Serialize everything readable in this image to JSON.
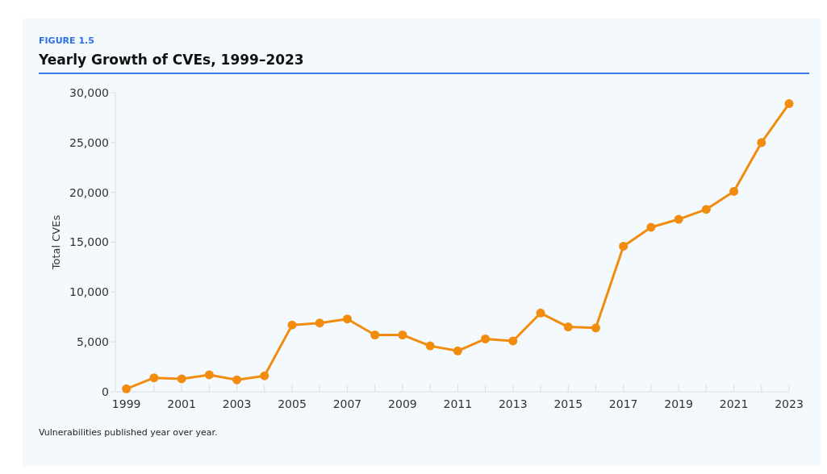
{
  "chart_data": {
    "type": "line",
    "title": "Yearly Growth of CVEs, 1999–2023",
    "ylabel": "Total CVEs",
    "annotations": [
      "FIGURE 1.5",
      "Vulnerabilities published year over year."
    ],
    "x": [
      1999,
      2000,
      2001,
      2002,
      2003,
      2004,
      2005,
      2006,
      2007,
      2008,
      2009,
      2010,
      2011,
      2012,
      2013,
      2014,
      2015,
      2016,
      2017,
      2018,
      2019,
      2020,
      2021,
      2022,
      2023
    ],
    "series": [
      {
        "color": "#f28c0f",
        "values": [
          300,
          1400,
          1300,
          1700,
          1200,
          1600,
          6700,
          6900,
          7300,
          5700,
          5700,
          4600,
          4100,
          5300,
          5100,
          7900,
          6500,
          6400,
          14600,
          16500,
          17300,
          18300,
          20100,
          25000,
          28900
        ]
      }
    ],
    "xlim": [
      1998.6,
      2023
    ],
    "xticks": [
      1999,
      {
        "value": 2000,
        "label": null
      },
      2001,
      {
        "value": 2002,
        "label": null
      },
      2003,
      {
        "value": 2004,
        "label": null
      },
      2005,
      {
        "value": 2006,
        "label": null
      },
      2007,
      {
        "value": 2008,
        "label": null
      },
      2009,
      {
        "value": 2010,
        "label": null
      },
      2011,
      {
        "value": 2012,
        "label": null
      },
      2013,
      {
        "value": 2014,
        "label": null
      },
      2015,
      {
        "value": 2016,
        "label": null
      },
      2017,
      {
        "value": 2018,
        "label": null
      },
      2019,
      {
        "value": 2020,
        "label": null
      },
      2021,
      {
        "value": 2022,
        "label": null
      },
      2023
    ],
    "ylim": [
      0,
      30000
    ],
    "yticks": [
      {
        "value": 0,
        "label": "0"
      },
      {
        "value": 5000,
        "label": "5,000"
      },
      {
        "value": 10000,
        "label": "10,000"
      },
      {
        "value": 15000,
        "label": "15,000"
      },
      {
        "value": 20000,
        "label": "20,000"
      },
      {
        "value": 25000,
        "label": "25,000"
      },
      {
        "value": 30000,
        "label": "30,000"
      }
    ],
    "grid": false,
    "marker": "circle",
    "line_style": "solid"
  }
}
